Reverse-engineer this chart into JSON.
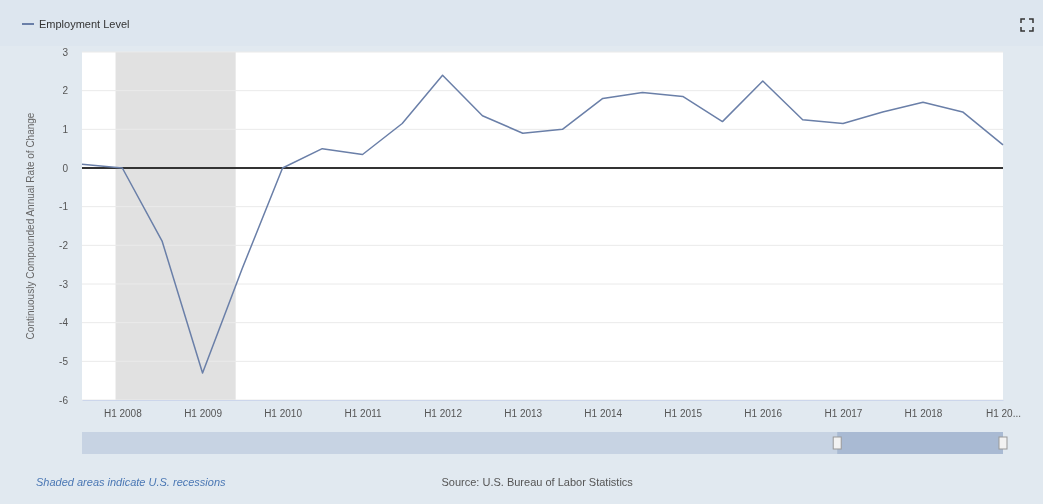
{
  "chart_data": {
    "type": "line",
    "ylabel": "Continuously Compounded Annual Rate of Change",
    "x": [
      "2007-07",
      "2008-01",
      "2008-07",
      "2009-01",
      "2009-07",
      "2010-01",
      "2010-07",
      "2011-01",
      "2011-07",
      "2012-01",
      "2012-07",
      "2013-01",
      "2013-07",
      "2014-01",
      "2014-07",
      "2015-01",
      "2015-07",
      "2016-01",
      "2016-07",
      "2017-01",
      "2017-07",
      "2018-01",
      "2018-07",
      "2019-01"
    ],
    "series": [
      {
        "name": "Employment Level",
        "color": "#6a7fa8",
        "values": [
          0.1,
          0,
          -1.9,
          -5.3,
          -2.6,
          0,
          0.5,
          0.35,
          1.15,
          2.4,
          1.35,
          0.9,
          1.0,
          1.8,
          1.95,
          1.85,
          1.2,
          2.25,
          1.25,
          1.15,
          1.45,
          1.7,
          1.45,
          0.6
        ]
      }
    ],
    "xlim": [
      "2007-07",
      "2019-01"
    ],
    "xticks": [
      {
        "value": "2008-01",
        "label": "H1 2008"
      },
      {
        "value": "2009-01",
        "label": "H1 2009"
      },
      {
        "value": "2010-01",
        "label": "H1 2010"
      },
      {
        "value": "2011-01",
        "label": "H1 2011"
      },
      {
        "value": "2012-01",
        "label": "H1 2012"
      },
      {
        "value": "2013-01",
        "label": "H1 2013"
      },
      {
        "value": "2014-01",
        "label": "H1 2014"
      },
      {
        "value": "2015-01",
        "label": "H1 2015"
      },
      {
        "value": "2016-01",
        "label": "H1 2016"
      },
      {
        "value": "2017-01",
        "label": "H1 2017"
      },
      {
        "value": "2018-01",
        "label": "H1 2018"
      },
      {
        "value": "2019-01",
        "label": "H1 20..."
      }
    ],
    "ylim": [
      -6,
      3
    ],
    "yticks": [
      -6,
      -5,
      -4,
      -3,
      -2,
      -1,
      0,
      1,
      2,
      3
    ],
    "grid": "y",
    "legend": "top left",
    "line_style": "solid",
    "marker": "none",
    "ref_lines": [
      {
        "axis": "y",
        "value": 0,
        "color": "#333333"
      }
    ],
    "bands": [
      {
        "axis": "x",
        "from": "2007-12",
        "to": "2009-06",
        "color": "#e1e1e1"
      }
    ],
    "annotations": [
      "Shaded areas indicate U.S. recessions",
      "Source: U.S. Bureau of Labor Statistics"
    ]
  }
}
